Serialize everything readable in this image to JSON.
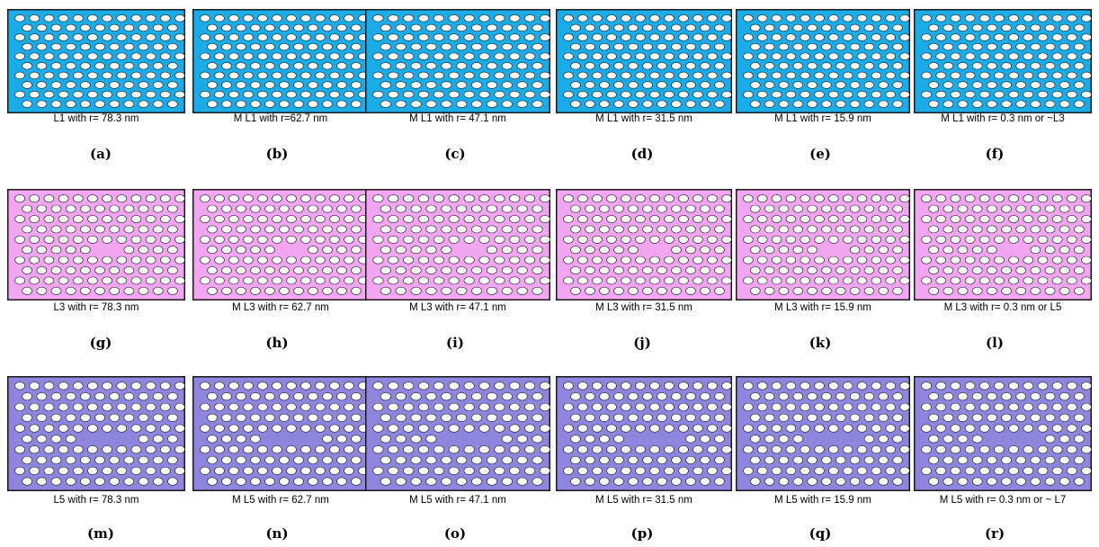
{
  "colors": {
    "row1_background": "#19ace8",
    "row2_background": "#f2a6f2",
    "row3_background": "#8e86de",
    "hole": "#ffffff",
    "border": "#1a1a1a"
  },
  "rows": [
    {
      "panels": [
        {
          "caption": "L1 with  r= 78.3 nm",
          "letter": "(a)"
        },
        {
          "caption": "M L1 with r=62.7 nm",
          "letter": "(b)"
        },
        {
          "caption": "M L1 with  r= 47.1 nm",
          "letter": "(c)"
        },
        {
          "caption": "M L1 with  r= 31.5 nm",
          "letter": "(d)"
        },
        {
          "caption": "M L1 with  r= 15.9 nm",
          "letter": "(e)"
        },
        {
          "caption": "M L1 with r= 0.3 nm or ~L3",
          "letter": "(f)"
        }
      ]
    },
    {
      "panels": [
        {
          "caption": "L3 with  r= 78.3 nm",
          "letter": "(g)"
        },
        {
          "caption": "M L3 with  r= 62.7 nm",
          "letter": "(h)"
        },
        {
          "caption": "M L3 with  r= 47.1 nm",
          "letter": "(i)"
        },
        {
          "caption": "M L3 with  r= 31.5 nm",
          "letter": "(j)"
        },
        {
          "caption": "M L3 with  r= 15.9 nm",
          "letter": "(k)"
        },
        {
          "caption": "M L3 with r= 0.3 nm or L5",
          "letter": "(l)"
        }
      ]
    },
    {
      "panels": [
        {
          "caption": "L5 with  r= 78.3 nm",
          "letter": "(m)"
        },
        {
          "caption": "M L5 with  r= 62.7 nm",
          "letter": "(n)"
        },
        {
          "caption": "M L5 with  r= 47.1 nm",
          "letter": "(o)"
        },
        {
          "caption": "M L5 with  r= 31.5 nm",
          "letter": "(p)"
        },
        {
          "caption": "M L5 with  r= 15.9 nm",
          "letter": "(q)"
        },
        {
          "caption": "M L5 with r= 0.3 nm or ~ L7",
          "letter": "(r)"
        }
      ]
    }
  ]
}
